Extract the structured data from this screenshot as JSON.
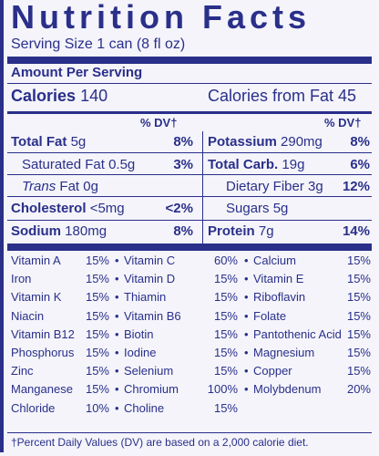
{
  "title": "Nutrition Facts",
  "serving_size": "Serving Size 1 can (8 fl oz)",
  "amount_per_serving": "Amount Per Serving",
  "calories_label": "Calories",
  "calories_value": "140",
  "calories_from_fat": "Calories from Fat 45",
  "dv_header": "% DV†",
  "left_nutrients": [
    {
      "label": "Total Fat",
      "amount": "5g",
      "dv": "8%"
    },
    {
      "label": "Saturated Fat",
      "amount": "0.5g",
      "dv": "3%"
    },
    {
      "label": "Trans",
      "amount": "Fat 0g",
      "dv": ""
    },
    {
      "label": "Cholesterol",
      "amount": "<5mg",
      "dv": "<2%"
    },
    {
      "label": "Sodium",
      "amount": "180mg",
      "dv": "8%"
    }
  ],
  "right_nutrients": [
    {
      "label": "Potassium",
      "amount": "290mg",
      "dv": "8%"
    },
    {
      "label": "Total Carb.",
      "amount": "19g",
      "dv": "6%"
    },
    {
      "label": "Dietary Fiber",
      "amount": "3g",
      "dv": "12%"
    },
    {
      "label": "Sugars",
      "amount": "5g",
      "dv": ""
    },
    {
      "label": "Protein",
      "amount": "7g",
      "dv": "14%"
    }
  ],
  "vitamins": [
    [
      {
        "n": "Vitamin A",
        "p": "15%"
      },
      {
        "n": "Vitamin C",
        "p": "60%"
      },
      {
        "n": "Calcium",
        "p": "15%"
      }
    ],
    [
      {
        "n": "Iron",
        "p": "15%"
      },
      {
        "n": "Vitamin D",
        "p": "15%"
      },
      {
        "n": "Vitamin E",
        "p": "15%"
      }
    ],
    [
      {
        "n": "Vitamin K",
        "p": "15%"
      },
      {
        "n": "Thiamin",
        "p": "15%"
      },
      {
        "n": "Riboflavin",
        "p": "15%"
      }
    ],
    [
      {
        "n": "Niacin",
        "p": "15%"
      },
      {
        "n": "Vitamin B6",
        "p": "15%"
      },
      {
        "n": "Folate",
        "p": "15%"
      }
    ],
    [
      {
        "n": "Vitamin B12",
        "p": "15%"
      },
      {
        "n": "Biotin",
        "p": "15%"
      },
      {
        "n": "Pantothenic Acid",
        "p": "15%"
      }
    ],
    [
      {
        "n": "Phosphorus",
        "p": "15%"
      },
      {
        "n": "Iodine",
        "p": "15%"
      },
      {
        "n": "Magnesium",
        "p": "15%"
      }
    ],
    [
      {
        "n": "Zinc",
        "p": "15%"
      },
      {
        "n": "Selenium",
        "p": "15%"
      },
      {
        "n": "Copper",
        "p": "15%"
      }
    ],
    [
      {
        "n": "Manganese",
        "p": "15%"
      },
      {
        "n": "Chromium",
        "p": "100%"
      },
      {
        "n": "Molybdenum",
        "p": "20%"
      }
    ],
    [
      {
        "n": "Chloride",
        "p": "10%"
      },
      {
        "n": "Choline",
        "p": "15%"
      },
      {
        "n": "",
        "p": ""
      }
    ]
  ],
  "bullet": "•",
  "footnote": "†Percent Daily Values (DV) are based on a 2,000 calorie diet.",
  "colors": {
    "ink": "#2a2f8a",
    "background": "#f4f4fa"
  }
}
